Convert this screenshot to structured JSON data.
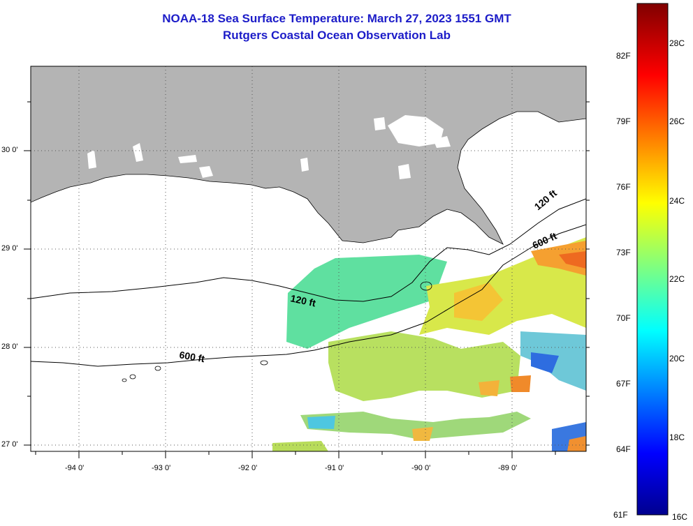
{
  "header": {
    "title_line1": "NOAA-18 Sea Surface Temperature:  March 27, 2023 1551 GMT",
    "title_line2": "Rutgers Coastal Ocean Observation Lab"
  },
  "map": {
    "lon_labels": [
      "-94 0'",
      "-93 0'",
      "-92 0'",
      "-91 0'",
      "-90 0'",
      "-89 0'"
    ],
    "lat_labels": [
      "30 0'",
      "29 0'",
      "28 0'",
      "27 0'"
    ],
    "contour_labels": {
      "c120_a": "120 ft",
      "c120_b": "120 ft",
      "c600_a": "600 ft",
      "c600_b": "600 ft"
    },
    "colors": {
      "land": "#b4b4b4",
      "ocean_nodata": "#ffffff",
      "grid": "#555555"
    }
  },
  "colorbar": {
    "fahrenheit": [
      "82F",
      "79F",
      "76F",
      "73F",
      "70F",
      "67F",
      "64F",
      "61F"
    ],
    "celsius": [
      "28C",
      "26C",
      "24C",
      "22C",
      "20C",
      "18C",
      "16C"
    ],
    "range_c": [
      16,
      29.5
    ]
  }
}
